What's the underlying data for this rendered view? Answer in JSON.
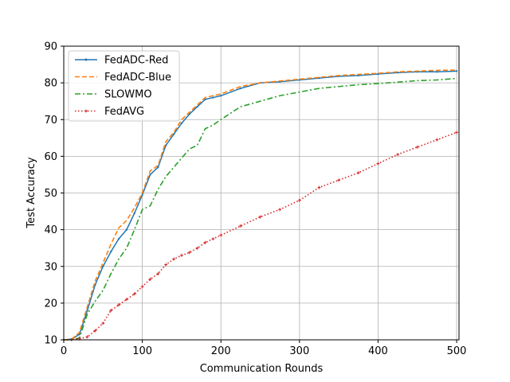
{
  "chart_data": {
    "type": "line",
    "title": "",
    "xlabel": "Communication Rounds",
    "ylabel": "Test Accuracy",
    "xlim": [
      0,
      503
    ],
    "ylim": [
      10,
      90
    ],
    "xticks": [
      0,
      100,
      200,
      300,
      400,
      500
    ],
    "yticks": [
      10,
      20,
      30,
      40,
      50,
      60,
      70,
      80,
      90
    ],
    "grid": true,
    "legend_position": "upper-left",
    "x": [
      0,
      10,
      20,
      30,
      40,
      50,
      60,
      70,
      80,
      90,
      100,
      110,
      120,
      130,
      140,
      150,
      160,
      170,
      180,
      190,
      200,
      225,
      250,
      275,
      300,
      325,
      350,
      375,
      400,
      425,
      450,
      475,
      500
    ],
    "series": [
      {
        "name": "FedADC-Red",
        "color": "#1f77b4",
        "style": "solid-dots",
        "values": [
          10,
          10.2,
          11.5,
          18,
          25,
          30,
          34,
          37.5,
          40,
          44.5,
          49.5,
          55,
          57,
          63,
          66,
          69,
          71.5,
          73.5,
          75.5,
          76,
          76.5,
          78.5,
          80,
          80.3,
          80.8,
          81.3,
          81.8,
          82,
          82.4,
          82.8,
          83,
          83,
          83.2
        ]
      },
      {
        "name": "FedADC-Blue",
        "color": "#ff7f0e",
        "style": "dashed",
        "values": [
          10,
          10.2,
          12,
          19,
          26,
          31,
          36,
          40.5,
          42.5,
          46,
          50,
          56,
          57.5,
          64,
          66.5,
          70,
          72,
          74,
          76,
          76.5,
          77,
          79,
          80,
          80.5,
          81,
          81.5,
          82,
          82.3,
          82.6,
          83,
          83.2,
          83.4,
          83.5
        ]
      },
      {
        "name": "SLOWMO",
        "color": "#2ca02c",
        "style": "dashdot",
        "values": [
          10,
          10,
          10.5,
          17,
          20.5,
          23.5,
          28,
          32,
          35,
          40,
          45.5,
          46.5,
          51,
          54.5,
          57,
          59.5,
          62,
          63,
          67.5,
          68.5,
          70,
          73.5,
          75,
          76.5,
          77.5,
          78.5,
          79,
          79.5,
          79.8,
          80.2,
          80.6,
          80.8,
          81.2
        ]
      },
      {
        "name": "FedAVG",
        "color": "#d62728",
        "style": "dotted-plus",
        "values": [
          10,
          10,
          10.3,
          10.8,
          12.5,
          14.5,
          18,
          19.5,
          21,
          22.5,
          24.5,
          26.5,
          28,
          30.5,
          32,
          33,
          33.8,
          35,
          36.5,
          37.5,
          38.5,
          41,
          43.5,
          45.5,
          48,
          51.5,
          53.5,
          55.5,
          58,
          60.5,
          62.5,
          64.5,
          66.5
        ]
      }
    ]
  }
}
